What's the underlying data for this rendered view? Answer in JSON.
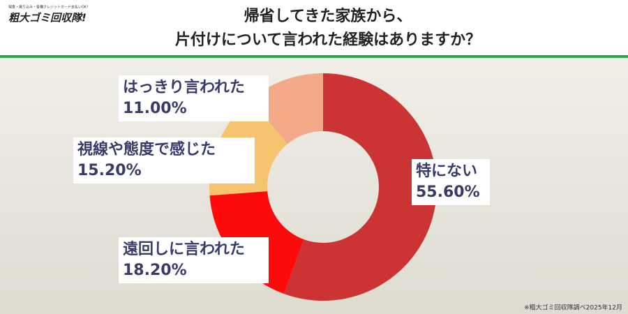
{
  "header": {
    "logo": "粗大ゴミ回収隊!",
    "tagline": "現金・振り込み・各種クレジットカード支払いOK!"
  },
  "chart_data": {
    "type": "donut",
    "title": [
      "帰省してきた家族から、",
      "片付けについて言われた経験はありますか？"
    ],
    "categories": [
      "特にない",
      "遠回しに言われた",
      "視線や態度で感じた",
      "はっきり言われた"
    ],
    "values": [
      55.6,
      18.2,
      15.2,
      11.0
    ],
    "value_labels": [
      "55.60%",
      "18.20%",
      "15.20%",
      "11.00%"
    ],
    "colors": [
      "#cc3333",
      "#ff0a0a",
      "#f6c46e",
      "#f4aa88"
    ]
  },
  "footnote": "※粗大ゴミ回収隊調べ2025年12月"
}
